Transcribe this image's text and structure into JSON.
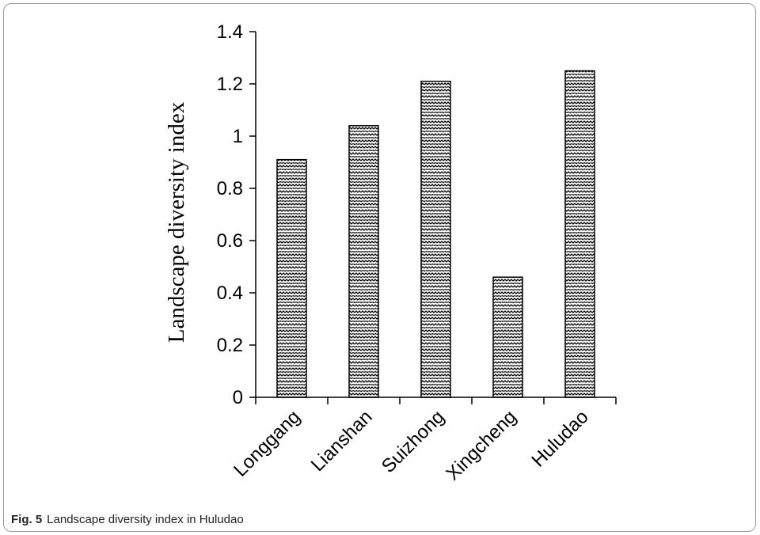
{
  "chart_data": {
    "type": "bar",
    "categories": [
      "Longgang",
      "Lianshan",
      "Suizhong",
      "Xingcheng",
      "Huludao"
    ],
    "values": [
      0.91,
      1.04,
      1.21,
      0.46,
      1.25
    ],
    "ylabel": "Landscape diversity index",
    "xlabel": "",
    "ylim": [
      0,
      1.4
    ],
    "yticks": [
      "0",
      "0.2",
      "0.4",
      "0.6",
      "0.8",
      "1",
      "1.2",
      "1.4"
    ],
    "grid": false,
    "bar_fill": "zigzag-pattern"
  },
  "caption": {
    "label": "Fig. 5",
    "text": "Landscape diversity index in Huludao"
  }
}
